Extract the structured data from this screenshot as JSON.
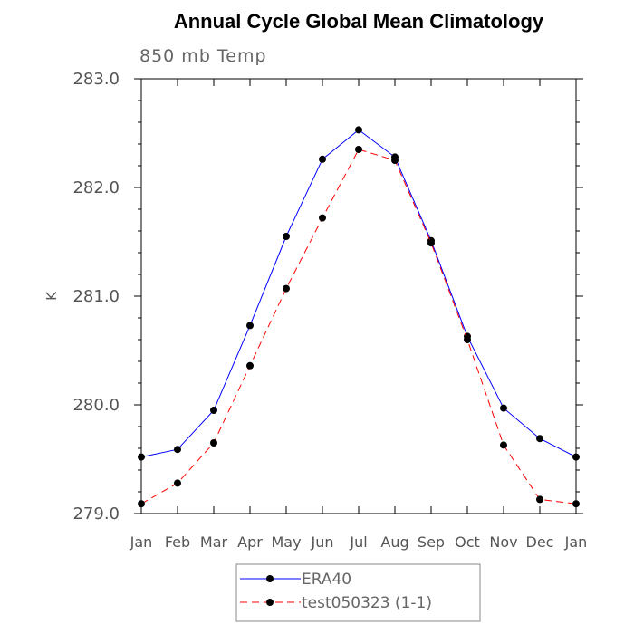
{
  "chart_data": {
    "type": "line",
    "title": "Annual Cycle Global Mean Climatology",
    "subtitle": "850 mb Temp",
    "ylabel": "K",
    "xlabel": "",
    "ylim": [
      279.0,
      283.0
    ],
    "yticks": [
      "279.0",
      "280.0",
      "281.0",
      "282.0",
      "283.0"
    ],
    "ytick_values": [
      279.0,
      280.0,
      281.0,
      282.0,
      283.0
    ],
    "categories": [
      "Jan",
      "Feb",
      "Mar",
      "Apr",
      "May",
      "Jun",
      "Jul",
      "Aug",
      "Sep",
      "Oct",
      "Nov",
      "Dec",
      "Jan"
    ],
    "series": [
      {
        "name": "ERA40",
        "color": "#0000ff",
        "dash": "solid",
        "marker": "circle",
        "values": [
          279.52,
          279.59,
          279.95,
          280.73,
          281.55,
          282.26,
          282.53,
          282.28,
          281.51,
          280.63,
          279.97,
          279.69,
          279.52
        ]
      },
      {
        "name": "test050323 (1-1)",
        "color": "#ff0000",
        "dash": "dashed",
        "marker": "circle",
        "values": [
          279.09,
          279.28,
          279.65,
          280.36,
          281.07,
          281.72,
          282.35,
          282.25,
          281.49,
          280.6,
          279.63,
          279.13,
          279.09
        ]
      }
    ],
    "legend": {
      "position": "bottom"
    },
    "grid": false
  }
}
